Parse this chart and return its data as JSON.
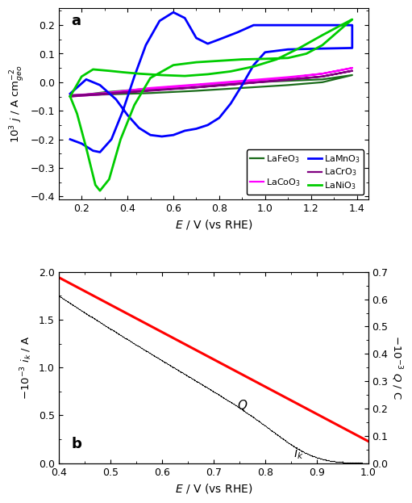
{
  "panel_a": {
    "title": "a",
    "xlabel": "E / V (vs RHE)",
    "xlim": [
      0.1,
      1.45
    ],
    "ylim": [
      -0.41,
      0.26
    ],
    "xticks": [
      0.2,
      0.4,
      0.6,
      0.8,
      1.0,
      1.2,
      1.4
    ],
    "yticks": [
      -0.4,
      -0.3,
      -0.2,
      -0.1,
      0.0,
      0.1,
      0.2
    ],
    "colors": {
      "LaFeO3": "#1a6b1a",
      "LaCoO3": "#ff00ff",
      "LaCrO3": "#800080",
      "LaMnO3": "#0000ff",
      "LaNiO3": "#00cc00"
    }
  },
  "panel_b": {
    "title": "b",
    "xlabel": "E / V (vs RHE)",
    "xlim": [
      0.4,
      1.0
    ],
    "ylim_left": [
      0.0,
      2.0
    ],
    "ylim_right": [
      0.0,
      0.7
    ],
    "xticks": [
      0.4,
      0.5,
      0.6,
      0.7,
      0.8,
      0.9,
      1.0
    ],
    "yticks_left": [
      0.0,
      0.5,
      1.0,
      1.5,
      2.0
    ],
    "yticks_right": [
      0.0,
      0.1,
      0.2,
      0.3,
      0.4,
      0.5,
      0.6,
      0.7
    ]
  }
}
